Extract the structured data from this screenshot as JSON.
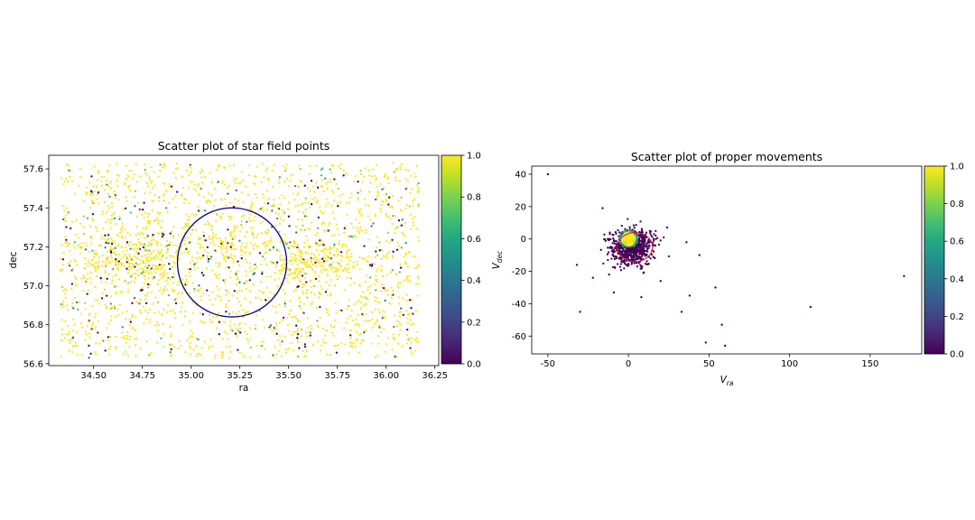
{
  "chart_data": [
    {
      "type": "scatter",
      "title": "Scatter plot of star field points",
      "xlabel": "ra",
      "ylabel": "dec",
      "xlim": [
        34.27,
        36.27
      ],
      "ylim": [
        56.59,
        57.67
      ],
      "xticks": [
        34.25,
        34.5,
        34.75,
        35.0,
        35.25,
        35.5,
        35.75,
        36.0,
        36.25
      ],
      "yticks": [
        56.6,
        56.8,
        57.0,
        57.2,
        57.4,
        57.6
      ],
      "colormap": "viridis",
      "colorbar": {
        "range": [
          0,
          1
        ],
        "ticks": [
          0.0,
          0.2,
          0.4,
          0.6,
          0.8,
          1.0
        ]
      },
      "circle": {
        "center": [
          35.21,
          57.12
        ],
        "radius_x": 0.28,
        "radius_y": 0.28,
        "color": "#00008b"
      },
      "clusters": [
        {
          "center": [
            34.72,
            57.14
          ],
          "spread": [
            0.15,
            0.07
          ]
        },
        {
          "center": [
            35.62,
            57.12
          ],
          "spread": [
            0.12,
            0.06
          ]
        },
        {
          "center": [
            35.2,
            57.2
          ],
          "spread": [
            0.15,
            0.07
          ]
        }
      ],
      "n_points": 2600
    },
    {
      "type": "scatter",
      "title": "Scatter plot of proper movements",
      "xlabel_base": "V",
      "xlabel_sub": "ra",
      "ylabel_base": "V",
      "ylabel_sub": "dec",
      "xlim": [
        -60,
        182
      ],
      "ylim": [
        -71,
        45
      ],
      "xticks": [
        -50,
        0,
        50,
        100,
        150
      ],
      "yticks": [
        -60,
        -40,
        -20,
        0,
        20,
        40
      ],
      "colormap": "viridis",
      "colorbar": {
        "range": [
          0,
          1
        ],
        "ticks": [
          0.0,
          0.2,
          0.4,
          0.6,
          0.8,
          1.0
        ]
      },
      "circle": {
        "center": [
          4,
          -5
        ],
        "radius_x": 11,
        "radius_y": 9,
        "color": "#dc143c"
      },
      "core": {
        "center": [
          0,
          0
        ],
        "radius": 4
      },
      "outliers": [
        [
          -50,
          40
        ],
        [
          -32,
          -16
        ],
        [
          -30,
          -45
        ],
        [
          -22,
          -24
        ],
        [
          -16,
          19
        ],
        [
          -12,
          -22
        ],
        [
          -9,
          -33
        ],
        [
          8,
          -36
        ],
        [
          20,
          -26
        ],
        [
          24,
          7
        ],
        [
          33,
          -45
        ],
        [
          36,
          -2
        ],
        [
          38,
          -35
        ],
        [
          44,
          -10
        ],
        [
          48,
          -64
        ],
        [
          54,
          -30
        ],
        [
          58,
          -53
        ],
        [
          60,
          -66
        ],
        [
          113,
          -42
        ],
        [
          171,
          -23
        ]
      ]
    }
  ]
}
